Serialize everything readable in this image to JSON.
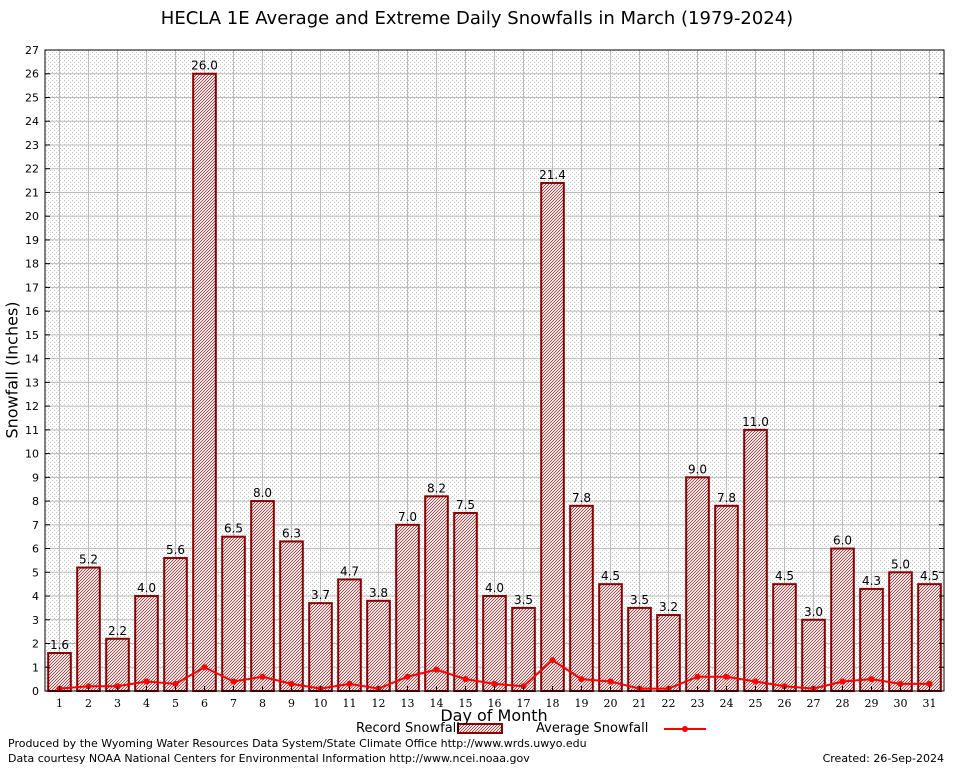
{
  "title": "HECLA 1E Average and Extreme Daily Snowfalls in March (1979-2024)",
  "footer": {
    "producer": "Produced by the Wyoming Water Resources Data System/State Climate Office http://www.wrds.uwyo.edu",
    "courtesy": "Data courtesy NOAA National Centers for Environmental Information http://www.ncei.noaa.gov",
    "created": "Created:  26-Sep-2024"
  },
  "legend": {
    "record": "Record Snowfall",
    "average": "Average Snowfall"
  },
  "colors": {
    "bar_border": "#8b0000",
    "bar_fill": "#c8a8a8",
    "average_line": "#ff0000",
    "grid": "#bbbbbb"
  },
  "chart_data": {
    "type": "bar",
    "title": "HECLA 1E Average and Extreme Daily Snowfalls in March (1979-2024)",
    "xlabel": "Day of Month",
    "ylabel": "Snowfall (Inches)",
    "ylim": [
      0,
      27
    ],
    "yticks": [
      "0",
      "1",
      "2",
      "3",
      "4",
      "5",
      "6",
      "7",
      "8",
      "9",
      "10",
      "11",
      "12",
      "13",
      "14",
      "15",
      "16",
      "17",
      "18",
      "19",
      "20",
      "21",
      "22",
      "23",
      "24",
      "25",
      "26",
      "27"
    ],
    "categories": [
      "1",
      "2",
      "3",
      "4",
      "5",
      "6",
      "7",
      "8",
      "9",
      "10",
      "11",
      "12",
      "13",
      "14",
      "15",
      "16",
      "17",
      "18",
      "19",
      "20",
      "21",
      "22",
      "23",
      "24",
      "25",
      "26",
      "27",
      "28",
      "29",
      "30",
      "31"
    ],
    "series": [
      {
        "name": "Record Snowfall",
        "type": "bar",
        "values": [
          1.6,
          5.2,
          2.2,
          4.0,
          5.6,
          26.0,
          6.5,
          8.0,
          6.3,
          3.7,
          4.7,
          3.8,
          7.0,
          8.2,
          7.5,
          4.0,
          3.5,
          21.4,
          7.8,
          4.5,
          3.5,
          3.2,
          9.0,
          7.8,
          11.0,
          4.5,
          3.0,
          6.0,
          4.3,
          5.0,
          4.5
        ],
        "labels": [
          "1.6",
          "5.2",
          "2.2",
          "4.0",
          "5.6",
          "26.0",
          "6.5",
          "8.0",
          "6.3",
          "3.7",
          "4.7",
          "3.8",
          "7.0",
          "8.2",
          "7.5",
          "4.0",
          "3.5",
          "21.4",
          "7.8",
          "4.5",
          "3.5",
          "3.2",
          "9.0",
          "7.8",
          "11.0",
          "4.5",
          "3.0",
          "6.0",
          "4.3",
          "5.0",
          "4.5"
        ]
      },
      {
        "name": "Average Snowfall",
        "type": "line",
        "values": [
          0.1,
          0.2,
          0.2,
          0.4,
          0.3,
          1.0,
          0.4,
          0.6,
          0.3,
          0.1,
          0.3,
          0.1,
          0.6,
          0.9,
          0.5,
          0.3,
          0.2,
          1.3,
          0.5,
          0.4,
          0.1,
          0.1,
          0.6,
          0.6,
          0.4,
          0.2,
          0.1,
          0.4,
          0.5,
          0.3,
          0.3
        ]
      }
    ],
    "grid": true
  }
}
